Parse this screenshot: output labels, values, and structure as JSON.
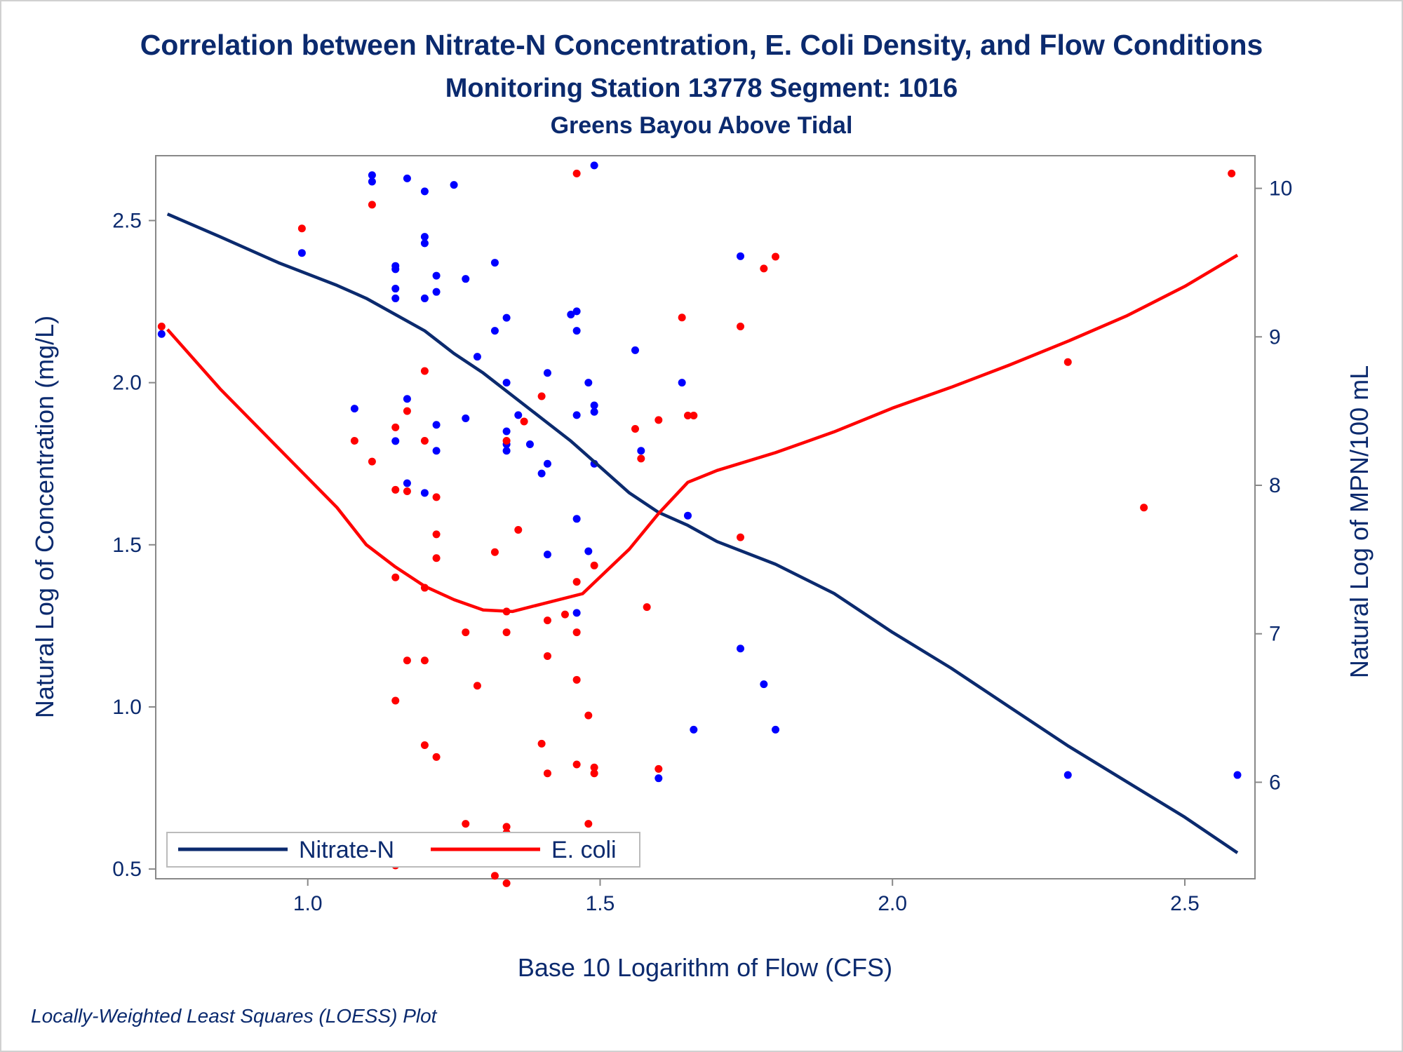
{
  "chart_data": {
    "type": "scatter",
    "title": "Correlation between Nitrate-N Concentration, E. Coli Density, and Flow Conditions",
    "subtitle": "Monitoring Station 13778 Segment: 1016",
    "subtitle2": "Greens Bayou Above Tidal",
    "footnote": "Locally-Weighted Least Squares (LOESS) Plot",
    "xlabel": "Base 10 Logarithm of Flow (CFS)",
    "ylabel_left": "Natural Log of Concentration (mg/L)",
    "ylabel_right": "Natural Log of MPN/100 mL",
    "xlim": [
      0.74,
      2.62
    ],
    "ylim_left": [
      0.47,
      2.7
    ],
    "ylim_right": [
      5.35,
      10.22
    ],
    "x_ticks": [
      "1.0",
      "1.5",
      "2.0",
      "2.5"
    ],
    "y_left_ticks": [
      "0.5",
      "1.0",
      "1.5",
      "2.0",
      "2.5"
    ],
    "y_right_ticks": [
      "6",
      "7",
      "8",
      "9",
      "10"
    ],
    "colors": {
      "nitrate": "#0b2a6e",
      "nitrate_points": "#0000ff",
      "ecoli": "#ff0000",
      "text": "#0b2a6e"
    },
    "legend_position": "bottom-left",
    "series": [
      {
        "name": "Nitrate-N",
        "axis": "left",
        "points": [
          [
            0.75,
            2.15
          ],
          [
            0.99,
            2.4
          ],
          [
            1.08,
            1.92
          ],
          [
            1.11,
            2.64
          ],
          [
            1.11,
            2.62
          ],
          [
            1.15,
            2.36
          ],
          [
            1.15,
            2.35
          ],
          [
            1.15,
            2.29
          ],
          [
            1.15,
            2.26
          ],
          [
            1.15,
            1.82
          ],
          [
            1.17,
            2.63
          ],
          [
            1.17,
            1.95
          ],
          [
            1.17,
            1.69
          ],
          [
            1.2,
            2.59
          ],
          [
            1.2,
            2.45
          ],
          [
            1.2,
            2.43
          ],
          [
            1.2,
            2.26
          ],
          [
            1.2,
            1.66
          ],
          [
            1.22,
            2.33
          ],
          [
            1.22,
            2.28
          ],
          [
            1.22,
            1.87
          ],
          [
            1.22,
            1.79
          ],
          [
            1.25,
            2.61
          ],
          [
            1.27,
            2.32
          ],
          [
            1.27,
            1.89
          ],
          [
            1.29,
            2.08
          ],
          [
            1.32,
            2.37
          ],
          [
            1.32,
            2.16
          ],
          [
            1.34,
            2.2
          ],
          [
            1.34,
            2.0
          ],
          [
            1.34,
            1.85
          ],
          [
            1.34,
            1.81
          ],
          [
            1.34,
            1.79
          ],
          [
            1.36,
            1.9
          ],
          [
            1.38,
            1.81
          ],
          [
            1.4,
            1.72
          ],
          [
            1.41,
            2.03
          ],
          [
            1.41,
            1.75
          ],
          [
            1.41,
            1.47
          ],
          [
            1.45,
            2.21
          ],
          [
            1.46,
            2.22
          ],
          [
            1.46,
            2.16
          ],
          [
            1.46,
            1.9
          ],
          [
            1.46,
            1.58
          ],
          [
            1.46,
            1.29
          ],
          [
            1.48,
            2.0
          ],
          [
            1.48,
            1.48
          ],
          [
            1.49,
            2.67
          ],
          [
            1.49,
            1.93
          ],
          [
            1.49,
            1.91
          ],
          [
            1.49,
            1.75
          ],
          [
            1.56,
            2.1
          ],
          [
            1.57,
            1.79
          ],
          [
            1.6,
            0.78
          ],
          [
            1.64,
            2.0
          ],
          [
            1.65,
            1.59
          ],
          [
            1.66,
            0.93
          ],
          [
            1.74,
            2.39
          ],
          [
            1.74,
            1.18
          ],
          [
            1.78,
            1.07
          ],
          [
            1.8,
            0.93
          ],
          [
            2.3,
            0.79
          ],
          [
            2.59,
            0.79
          ]
        ]
      },
      {
        "name": "E. coli",
        "axis": "right",
        "points": [
          [
            0.75,
            9.07
          ],
          [
            0.99,
            9.73
          ],
          [
            1.08,
            8.3
          ],
          [
            1.11,
            8.16
          ],
          [
            1.11,
            9.89
          ],
          [
            1.15,
            8.39
          ],
          [
            1.15,
            7.97
          ],
          [
            1.15,
            7.38
          ],
          [
            1.15,
            6.55
          ],
          [
            1.15,
            5.44
          ],
          [
            1.17,
            8.5
          ],
          [
            1.17,
            7.96
          ],
          [
            1.17,
            6.82
          ],
          [
            1.2,
            8.3
          ],
          [
            1.2,
            8.77
          ],
          [
            1.2,
            7.31
          ],
          [
            1.2,
            6.82
          ],
          [
            1.2,
            6.25
          ],
          [
            1.22,
            7.92
          ],
          [
            1.22,
            7.67
          ],
          [
            1.22,
            7.51
          ],
          [
            1.22,
            6.17
          ],
          [
            1.25,
            5.56
          ],
          [
            1.27,
            7.01
          ],
          [
            1.27,
            5.72
          ],
          [
            1.29,
            6.65
          ],
          [
            1.32,
            7.55
          ],
          [
            1.32,
            5.37
          ],
          [
            1.34,
            7.15
          ],
          [
            1.34,
            7.01
          ],
          [
            1.34,
            5.7
          ],
          [
            1.34,
            5.66
          ],
          [
            1.34,
            8.3
          ],
          [
            1.34,
            5.32
          ],
          [
            1.36,
            7.7
          ],
          [
            1.37,
            8.43
          ],
          [
            1.4,
            8.6
          ],
          [
            1.4,
            6.26
          ],
          [
            1.41,
            7.09
          ],
          [
            1.41,
            6.85
          ],
          [
            1.41,
            6.06
          ],
          [
            1.44,
            7.13
          ],
          [
            1.46,
            10.1
          ],
          [
            1.46,
            7.35
          ],
          [
            1.46,
            7.01
          ],
          [
            1.46,
            6.69
          ],
          [
            1.46,
            6.12
          ],
          [
            1.48,
            6.45
          ],
          [
            1.48,
            5.72
          ],
          [
            1.49,
            7.46
          ],
          [
            1.49,
            6.1
          ],
          [
            1.49,
            6.06
          ],
          [
            1.49,
            5.63
          ],
          [
            1.56,
            8.38
          ],
          [
            1.57,
            8.18
          ],
          [
            1.58,
            7.18
          ],
          [
            1.6,
            8.44
          ],
          [
            1.6,
            6.09
          ],
          [
            1.64,
            9.13
          ],
          [
            1.65,
            8.47
          ],
          [
            1.66,
            8.47
          ],
          [
            1.74,
            9.07
          ],
          [
            1.74,
            7.65
          ],
          [
            1.78,
            9.46
          ],
          [
            1.8,
            9.54
          ],
          [
            2.3,
            8.83
          ],
          [
            2.43,
            7.85
          ],
          [
            2.58,
            10.1
          ]
        ]
      }
    ],
    "loess": [
      {
        "name": "Nitrate-N",
        "axis": "left",
        "points": [
          [
            0.76,
            2.52
          ],
          [
            0.85,
            2.45
          ],
          [
            0.95,
            2.37
          ],
          [
            1.05,
            2.3
          ],
          [
            1.1,
            2.26
          ],
          [
            1.15,
            2.21
          ],
          [
            1.2,
            2.16
          ],
          [
            1.25,
            2.09
          ],
          [
            1.3,
            2.03
          ],
          [
            1.35,
            1.96
          ],
          [
            1.4,
            1.89
          ],
          [
            1.45,
            1.82
          ],
          [
            1.5,
            1.74
          ],
          [
            1.55,
            1.66
          ],
          [
            1.6,
            1.6
          ],
          [
            1.65,
            1.56
          ],
          [
            1.7,
            1.51
          ],
          [
            1.8,
            1.44
          ],
          [
            1.9,
            1.35
          ],
          [
            2.0,
            1.23
          ],
          [
            2.1,
            1.12
          ],
          [
            2.2,
            1.0
          ],
          [
            2.3,
            0.88
          ],
          [
            2.4,
            0.77
          ],
          [
            2.5,
            0.66
          ],
          [
            2.59,
            0.55
          ]
        ]
      },
      {
        "name": "E. coli",
        "axis": "right",
        "points": [
          [
            0.76,
            9.05
          ],
          [
            0.85,
            8.65
          ],
          [
            0.95,
            8.25
          ],
          [
            1.05,
            7.85
          ],
          [
            1.1,
            7.6
          ],
          [
            1.15,
            7.45
          ],
          [
            1.2,
            7.32
          ],
          [
            1.25,
            7.23
          ],
          [
            1.3,
            7.16
          ],
          [
            1.35,
            7.15
          ],
          [
            1.4,
            7.2
          ],
          [
            1.47,
            7.27
          ],
          [
            1.55,
            7.57
          ],
          [
            1.6,
            7.81
          ],
          [
            1.65,
            8.02
          ],
          [
            1.7,
            8.1
          ],
          [
            1.8,
            8.22
          ],
          [
            1.9,
            8.36
          ],
          [
            2.0,
            8.52
          ],
          [
            2.1,
            8.66
          ],
          [
            2.2,
            8.81
          ],
          [
            2.3,
            8.97
          ],
          [
            2.4,
            9.14
          ],
          [
            2.5,
            9.34
          ],
          [
            2.59,
            9.55
          ]
        ]
      }
    ]
  }
}
